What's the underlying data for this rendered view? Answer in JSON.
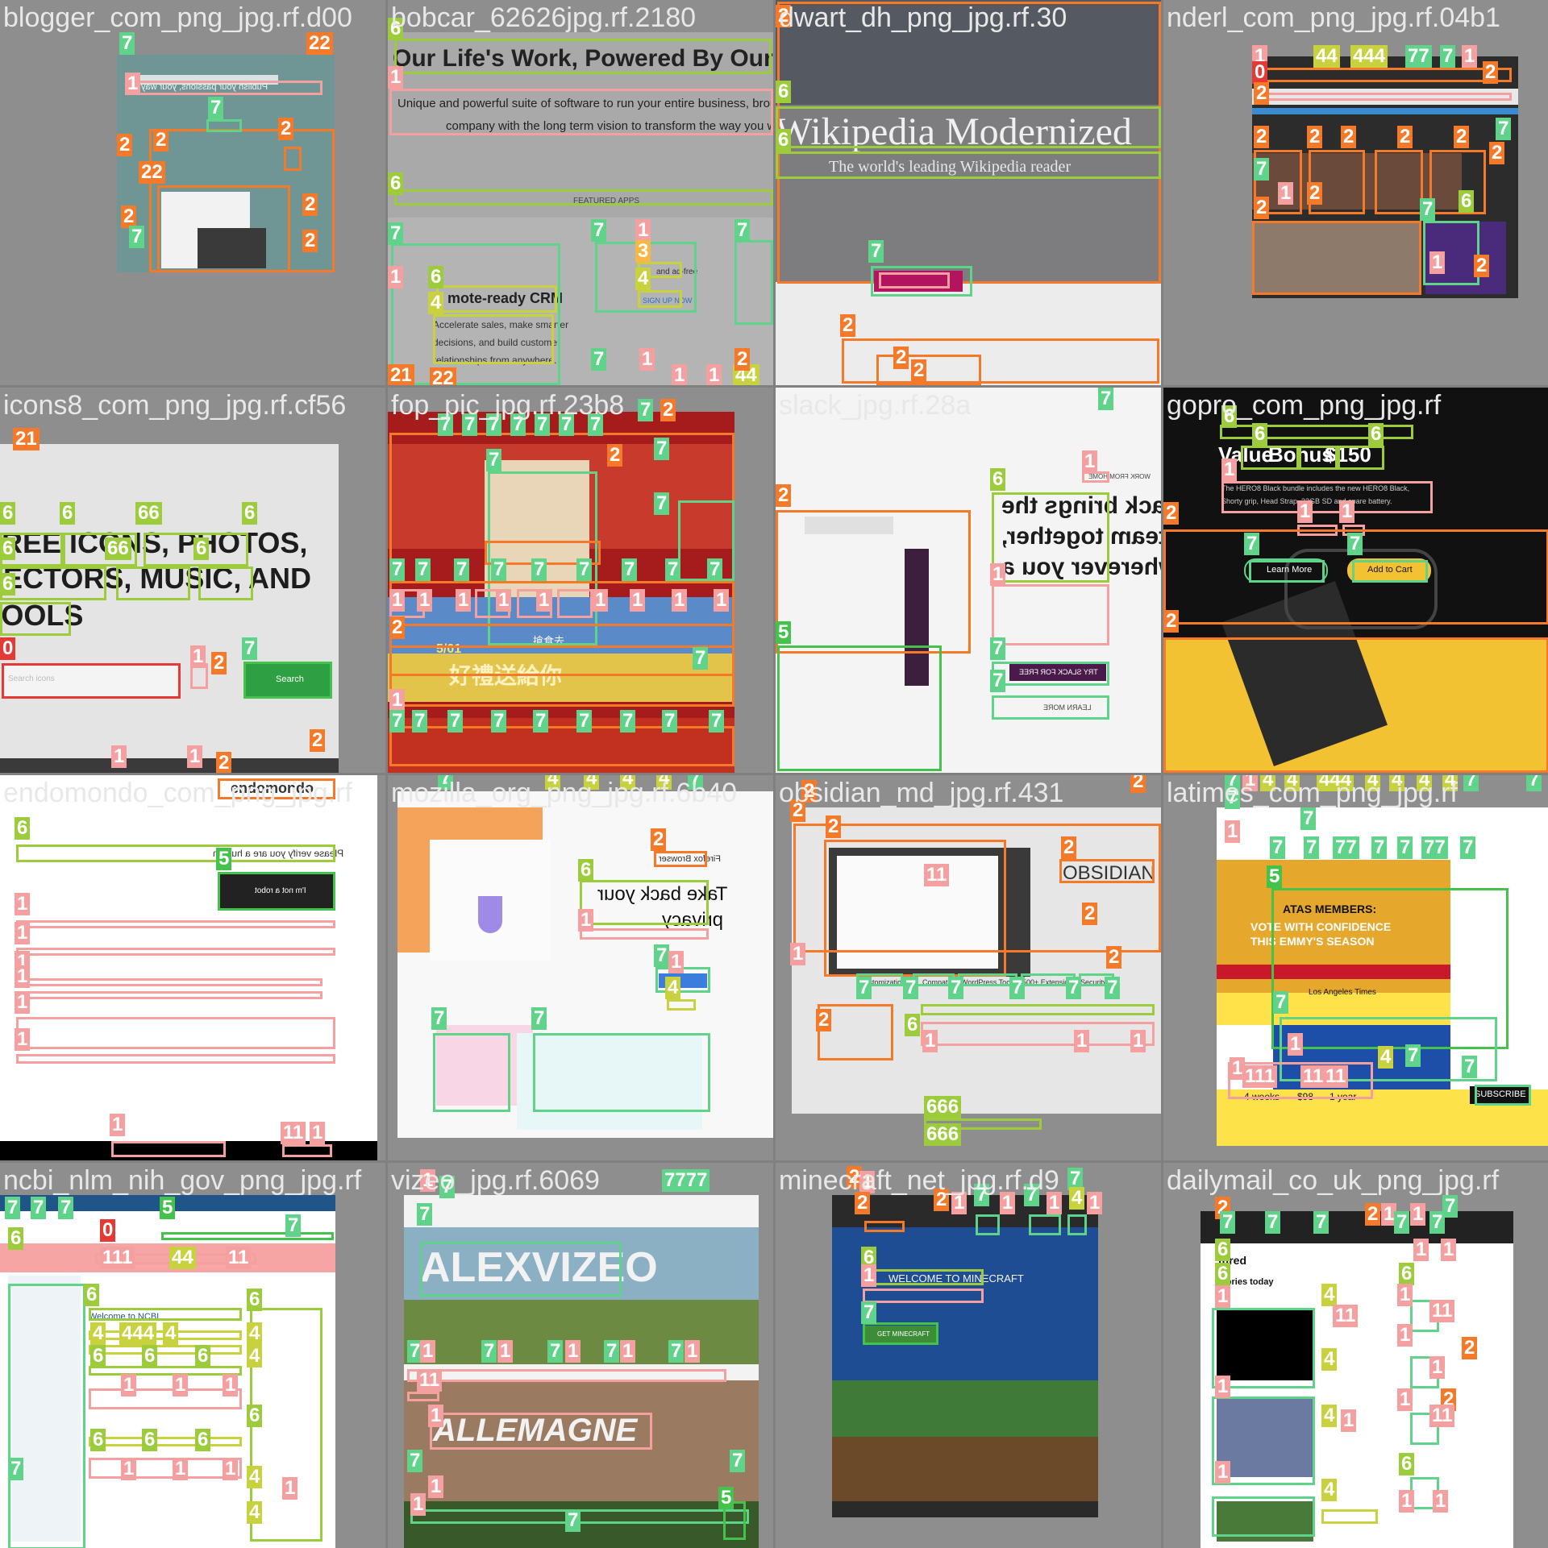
{
  "tiles": [
    {
      "title": "blogger_com_png_jpg.rf.d00",
      "text": [
        "Publish your passions, your way"
      ]
    },
    {
      "title": "bobcar_62626jpg.rf.2180",
      "text": [
        "Our Life's Work, Powered By Our Life's",
        "Unique and powerful suite of software to run your entire business, brought to y",
        "company with the long term vision to transform the way you work.",
        "FEATURED APPS",
        "mote-ready CRM",
        "Accelerate sales, make smarter",
        "decisions, and build customer",
        "relationships from anywhere.",
        "and ad-free",
        "SIGN UP NOW"
      ]
    },
    {
      "title": "dwart_dh_png_jpg.rf.30",
      "text": [
        "Wikipedia Modernized",
        "The world's leading Wikipedia reader"
      ]
    },
    {
      "title": "nderl_com_png_jpg.rf.04b1",
      "text": []
    },
    {
      "title": "icons8_com_png_jpg.rf.cf56",
      "text": [
        "FREE ICONS, PHOTOS,",
        "VECTORS, MUSIC, AND",
        "TOOLS",
        "Search",
        "Search icons"
      ]
    },
    {
      "title": "fop_pic_jpg.rf.23b8",
      "text": [
        "5/01",
        "好禮送給你",
        "搶食去"
      ]
    },
    {
      "title": "slack_jpg.rf.28a",
      "text": [
        "Slack brings the",
        "team together,",
        "wherever you a",
        "TRY SLACK FOR FREE",
        "LEARN MORE",
        "WORK FROM HOME"
      ]
    },
    {
      "title": "gopro_com_png_jpg.rf",
      "text": [
        "Value",
        "Bonus",
        "$150",
        "Learn More",
        "Add to Cart",
        "The HERO8 Black bundle includes the new HERO8 Black,",
        "Shorty grip, Head Strap, 32GB SD and spare battery."
      ]
    },
    {
      "title": "endomondo_com_png_jpg.rf",
      "text": [
        "Please verify you are a human",
        "I'm not a robot",
        "endomondo"
      ]
    },
    {
      "title": "mozilla_org_png_jpg.rf.6b40",
      "text": [
        "Take back your",
        "privacy",
        "Firefox Browser"
      ]
    },
    {
      "title": "obsidian_md_jpg.rf.431",
      "text": [
        "OBSIDIAN",
        "Customization",
        "Compat",
        "WordPress Toolkit",
        "500+ Extensions",
        "Security"
      ]
    },
    {
      "title": "latimes_com_png_jpg.rf",
      "text": [
        "ATAS MEMBERS:",
        "VOTE WITH CONFIDENCE",
        "THIS EMMY'S SEASON",
        "SUBSCRIBE",
        "Los Angeles Times",
        "4 weeks",
        "$98",
        "1 year"
      ]
    },
    {
      "title": "ncbi_nlm_nih_gov_png_jpg.rf",
      "text": [
        "Welcome to NCBI"
      ]
    },
    {
      "title": "vizeo_jpg.rf.6069",
      "text": [
        "ALEXVIZEO",
        "ALLEMAGNE"
      ]
    },
    {
      "title": "minecraft_net_jpg.rf.d9",
      "text": [
        "WELCOME TO MINECRAFT",
        "GET MINECRAFT"
      ]
    },
    {
      "title": "dailymail_co_uk_png_jpg.rf",
      "text": [
        "tured",
        "stories today"
      ]
    }
  ],
  "legend_classes": [
    "0",
    "1",
    "2",
    "3",
    "4",
    "5",
    "6",
    "7"
  ],
  "colors": {
    "c0": "#e53935",
    "c1": "#f4a0a0",
    "c2": "#f47a2a",
    "c3": "#f6b845",
    "c4": "#c8d13e",
    "c5": "#44c24c",
    "c6": "#9ccc3c",
    "c7": "#5fd38a"
  }
}
